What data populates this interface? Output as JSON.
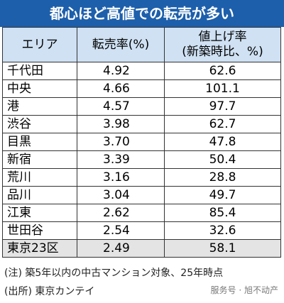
{
  "header": {
    "title": "都心ほど高値での転売が多い"
  },
  "table": {
    "columns": [
      "エリア",
      "転売率(%)",
      [
        "値上げ率",
        "(新築時比、%)"
      ]
    ],
    "rows": [
      [
        "千代田",
        "4.92",
        "62.6"
      ],
      [
        "中央",
        "4.66",
        "101.1"
      ],
      [
        "港",
        "4.57",
        "97.7"
      ],
      [
        "渋谷",
        "3.98",
        "62.7"
      ],
      [
        "目黒",
        "3.70",
        "47.8"
      ],
      [
        "新宿",
        "3.39",
        "50.4"
      ],
      [
        "荒川",
        "3.16",
        "28.8"
      ],
      [
        "品川",
        "3.04",
        "49.7"
      ],
      [
        "江東",
        "2.62",
        "85.4"
      ],
      [
        "世田谷",
        "2.54",
        "32.6"
      ],
      [
        "東京23区",
        "2.49",
        "58.1"
      ]
    ]
  },
  "notes": [
    "(注) 築5年以内の中古マンション対象、25年時点",
    "(出所) 東京カンテイ"
  ],
  "watermark": "服务号 · 旭不动产"
}
